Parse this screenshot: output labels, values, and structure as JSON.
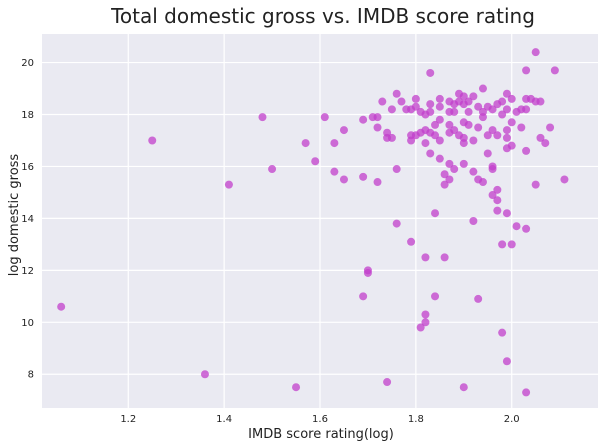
{
  "colors": {
    "plot_background": "#EAEAF2",
    "grid": "#FFFFFF",
    "point": "#C13FCB"
  },
  "chart_data": {
    "type": "scatter",
    "title": "Total domestic gross vs. IMDB score rating",
    "xlabel": "IMDB score rating(log)",
    "ylabel": "log domestic gross",
    "xlim": [
      1.02,
      2.18
    ],
    "ylim": [
      6.7,
      21.1
    ],
    "xticks": [
      1.2,
      1.4,
      1.6,
      1.8,
      2.0
    ],
    "yticks": [
      8,
      10,
      12,
      14,
      16,
      18,
      20
    ],
    "xtick_labels": [
      "1.2",
      "1.4",
      "1.6",
      "1.8",
      "2.0"
    ],
    "ytick_labels": [
      "8",
      "10",
      "12",
      "14",
      "16",
      "18",
      "20"
    ],
    "grid": true,
    "legend": "none",
    "points": [
      [
        1.06,
        10.6
      ],
      [
        1.25,
        17.0
      ],
      [
        1.36,
        8.0
      ],
      [
        1.41,
        15.3
      ],
      [
        1.48,
        17.9
      ],
      [
        1.5,
        15.9
      ],
      [
        1.55,
        7.5
      ],
      [
        1.57,
        16.9
      ],
      [
        1.59,
        16.2
      ],
      [
        1.61,
        17.9
      ],
      [
        1.63,
        15.8
      ],
      [
        1.63,
        16.9
      ],
      [
        1.65,
        17.4
      ],
      [
        1.65,
        15.5
      ],
      [
        1.69,
        17.8
      ],
      [
        1.69,
        15.6
      ],
      [
        1.69,
        11.0
      ],
      [
        1.7,
        11.9
      ],
      [
        1.7,
        12.0
      ],
      [
        1.71,
        17.9
      ],
      [
        1.72,
        17.9
      ],
      [
        1.72,
        17.5
      ],
      [
        1.72,
        15.4
      ],
      [
        1.73,
        18.5
      ],
      [
        1.74,
        17.3
      ],
      [
        1.74,
        17.1
      ],
      [
        1.74,
        7.7
      ],
      [
        1.75,
        18.2
      ],
      [
        1.75,
        17.1
      ],
      [
        1.76,
        13.8
      ],
      [
        1.76,
        15.9
      ],
      [
        1.76,
        18.8
      ],
      [
        1.77,
        18.5
      ],
      [
        1.78,
        18.2
      ],
      [
        1.79,
        18.2
      ],
      [
        1.79,
        17.2
      ],
      [
        1.79,
        17.0
      ],
      [
        1.79,
        13.1
      ],
      [
        1.8,
        18.3
      ],
      [
        1.8,
        18.6
      ],
      [
        1.8,
        17.2
      ],
      [
        1.81,
        18.1
      ],
      [
        1.81,
        17.3
      ],
      [
        1.81,
        9.8
      ],
      [
        1.82,
        18.0
      ],
      [
        1.82,
        17.4
      ],
      [
        1.82,
        16.9
      ],
      [
        1.82,
        12.5
      ],
      [
        1.82,
        10.3
      ],
      [
        1.82,
        10.0
      ],
      [
        1.83,
        19.6
      ],
      [
        1.83,
        18.4
      ],
      [
        1.83,
        18.1
      ],
      [
        1.83,
        17.3
      ],
      [
        1.83,
        16.5
      ],
      [
        1.84,
        17.6
      ],
      [
        1.84,
        17.2
      ],
      [
        1.84,
        14.2
      ],
      [
        1.84,
        11.0
      ],
      [
        1.85,
        18.6
      ],
      [
        1.85,
        18.3
      ],
      [
        1.85,
        17.8
      ],
      [
        1.85,
        17.0
      ],
      [
        1.85,
        16.3
      ],
      [
        1.86,
        15.3
      ],
      [
        1.86,
        15.7
      ],
      [
        1.86,
        12.5
      ],
      [
        1.87,
        18.5
      ],
      [
        1.87,
        18.1
      ],
      [
        1.87,
        17.6
      ],
      [
        1.87,
        17.3
      ],
      [
        1.87,
        16.1
      ],
      [
        1.87,
        15.5
      ],
      [
        1.88,
        18.1
      ],
      [
        1.88,
        18.4
      ],
      [
        1.88,
        17.4
      ],
      [
        1.88,
        15.9
      ],
      [
        1.89,
        18.8
      ],
      [
        1.89,
        18.5
      ],
      [
        1.89,
        17.2
      ],
      [
        1.9,
        18.7
      ],
      [
        1.9,
        18.4
      ],
      [
        1.9,
        17.7
      ],
      [
        1.9,
        17.1
      ],
      [
        1.9,
        16.9
      ],
      [
        1.9,
        16.1
      ],
      [
        1.9,
        7.5
      ],
      [
        1.91,
        18.5
      ],
      [
        1.91,
        18.1
      ],
      [
        1.91,
        17.6
      ],
      [
        1.92,
        18.7
      ],
      [
        1.92,
        17.0
      ],
      [
        1.92,
        15.8
      ],
      [
        1.92,
        13.9
      ],
      [
        1.93,
        18.3
      ],
      [
        1.93,
        17.5
      ],
      [
        1.93,
        15.5
      ],
      [
        1.93,
        10.9
      ],
      [
        1.94,
        19.0
      ],
      [
        1.94,
        18.1
      ],
      [
        1.94,
        17.9
      ],
      [
        1.94,
        15.4
      ],
      [
        1.95,
        18.3
      ],
      [
        1.95,
        17.2
      ],
      [
        1.95,
        16.5
      ],
      [
        1.96,
        18.2
      ],
      [
        1.96,
        17.4
      ],
      [
        1.96,
        16.0
      ],
      [
        1.96,
        15.9
      ],
      [
        1.96,
        14.9
      ],
      [
        1.97,
        18.4
      ],
      [
        1.97,
        17.2
      ],
      [
        1.97,
        15.1
      ],
      [
        1.97,
        14.7
      ],
      [
        1.97,
        14.3
      ],
      [
        1.98,
        18.5
      ],
      [
        1.98,
        18.0
      ],
      [
        1.98,
        13.0
      ],
      [
        1.98,
        9.6
      ],
      [
        1.99,
        18.8
      ],
      [
        1.99,
        18.2
      ],
      [
        1.99,
        17.4
      ],
      [
        1.99,
        17.1
      ],
      [
        1.99,
        16.7
      ],
      [
        1.99,
        14.2
      ],
      [
        1.99,
        8.5
      ],
      [
        2.0,
        18.6
      ],
      [
        2.0,
        17.7
      ],
      [
        2.0,
        16.8
      ],
      [
        2.0,
        13.0
      ],
      [
        2.01,
        18.1
      ],
      [
        2.01,
        13.7
      ],
      [
        2.02,
        18.2
      ],
      [
        2.02,
        17.5
      ],
      [
        2.03,
        19.7
      ],
      [
        2.03,
        18.6
      ],
      [
        2.03,
        18.2
      ],
      [
        2.03,
        16.6
      ],
      [
        2.03,
        13.6
      ],
      [
        2.03,
        7.3
      ],
      [
        2.04,
        18.6
      ],
      [
        2.05,
        20.4
      ],
      [
        2.05,
        18.5
      ],
      [
        2.05,
        15.3
      ],
      [
        2.06,
        17.1
      ],
      [
        2.06,
        18.5
      ],
      [
        2.07,
        16.9
      ],
      [
        2.08,
        17.5
      ],
      [
        2.09,
        19.7
      ],
      [
        2.11,
        15.5
      ]
    ]
  }
}
